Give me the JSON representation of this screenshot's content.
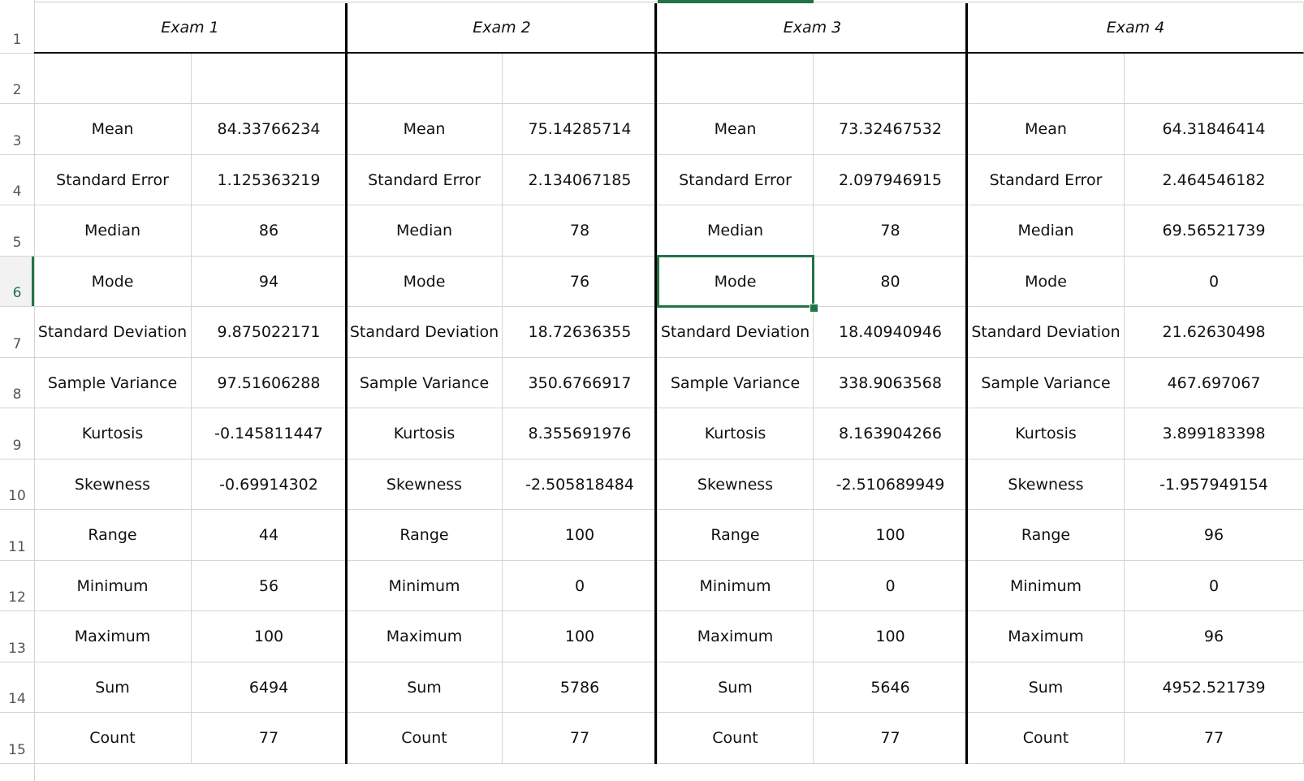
{
  "rows": [
    "1",
    "2",
    "3",
    "4",
    "5",
    "6",
    "7",
    "8",
    "9",
    "10",
    "11",
    "12",
    "13",
    "14",
    "15"
  ],
  "active_row": "6",
  "exams": [
    {
      "title": "Exam 1",
      "stats": [
        {
          "label": "Mean",
          "value": "84.33766234"
        },
        {
          "label": "Standard Error",
          "value": "1.125363219"
        },
        {
          "label": "Median",
          "value": "86"
        },
        {
          "label": "Mode",
          "value": "94"
        },
        {
          "label": "Standard Deviation",
          "value": "9.875022171"
        },
        {
          "label": "Sample Variance",
          "value": "97.51606288"
        },
        {
          "label": "Kurtosis",
          "value": "-0.145811447"
        },
        {
          "label": "Skewness",
          "value": "-0.69914302"
        },
        {
          "label": "Range",
          "value": "44"
        },
        {
          "label": "Minimum",
          "value": "56"
        },
        {
          "label": "Maximum",
          "value": "100"
        },
        {
          "label": "Sum",
          "value": "6494"
        },
        {
          "label": "Count",
          "value": "77"
        }
      ]
    },
    {
      "title": "Exam 2",
      "stats": [
        {
          "label": "Mean",
          "value": "75.14285714"
        },
        {
          "label": "Standard Error",
          "value": "2.134067185"
        },
        {
          "label": "Median",
          "value": "78"
        },
        {
          "label": "Mode",
          "value": "76"
        },
        {
          "label": "Standard Deviation",
          "value": "18.72636355"
        },
        {
          "label": "Sample Variance",
          "value": "350.6766917"
        },
        {
          "label": "Kurtosis",
          "value": "8.355691976"
        },
        {
          "label": "Skewness",
          "value": "-2.505818484"
        },
        {
          "label": "Range",
          "value": "100"
        },
        {
          "label": "Minimum",
          "value": "0"
        },
        {
          "label": "Maximum",
          "value": "100"
        },
        {
          "label": "Sum",
          "value": "5786"
        },
        {
          "label": "Count",
          "value": "77"
        }
      ]
    },
    {
      "title": "Exam 3",
      "stats": [
        {
          "label": "Mean",
          "value": "73.32467532"
        },
        {
          "label": "Standard Error",
          "value": "2.097946915"
        },
        {
          "label": "Median",
          "value": "78"
        },
        {
          "label": "Mode",
          "value": "80"
        },
        {
          "label": "Standard Deviation",
          "value": "18.40940946"
        },
        {
          "label": "Sample Variance",
          "value": "338.9063568"
        },
        {
          "label": "Kurtosis",
          "value": "8.163904266"
        },
        {
          "label": "Skewness",
          "value": "-2.510689949"
        },
        {
          "label": "Range",
          "value": "100"
        },
        {
          "label": "Minimum",
          "value": "0"
        },
        {
          "label": "Maximum",
          "value": "100"
        },
        {
          "label": "Sum",
          "value": "5646"
        },
        {
          "label": "Count",
          "value": "77"
        }
      ]
    },
    {
      "title": "Exam 4",
      "stats": [
        {
          "label": "Mean",
          "value": "64.31846414"
        },
        {
          "label": "Standard Error",
          "value": "2.464546182"
        },
        {
          "label": "Median",
          "value": "69.56521739"
        },
        {
          "label": "Mode",
          "value": "0"
        },
        {
          "label": "Standard Deviation",
          "value": "21.62630498"
        },
        {
          "label": "Sample Variance",
          "value": "467.697067"
        },
        {
          "label": "Kurtosis",
          "value": "3.899183398"
        },
        {
          "label": "Skewness",
          "value": "-1.957949154"
        },
        {
          "label": "Range",
          "value": "96"
        },
        {
          "label": "Minimum",
          "value": "0"
        },
        {
          "label": "Maximum",
          "value": "96"
        },
        {
          "label": "Sum",
          "value": "4952.521739"
        },
        {
          "label": "Count",
          "value": "77"
        }
      ]
    }
  ],
  "selected_cell": {
    "exam": 2,
    "stat": 3
  },
  "colors": {
    "accent": "#217346",
    "grid": "#d4d4d4",
    "border": "#000000"
  }
}
